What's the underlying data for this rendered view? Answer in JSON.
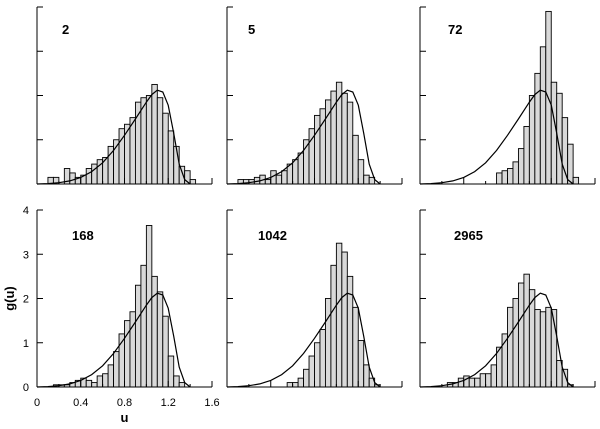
{
  "chart_data": {
    "type": "bar",
    "subtype": "histogram-with-fitted-curve",
    "xlabel": "u",
    "ylabel": "g(u)",
    "xlim": [
      0,
      1.6
    ],
    "ylim": [
      0,
      4
    ],
    "xticks": [
      "0",
      "0.4",
      "0.8",
      "1.2",
      "1.6"
    ],
    "yticks": [
      "0",
      "1",
      "2",
      "3",
      "4"
    ],
    "bin_width": 0.05,
    "bin_start": 0.1,
    "colors": {
      "bar_fill": "#d9d9d9",
      "bar_stroke": "#000000",
      "curve": "#000000",
      "axis": "#000000"
    },
    "curve": {
      "x": [
        0,
        0.1,
        0.2,
        0.3,
        0.4,
        0.5,
        0.6,
        0.7,
        0.8,
        0.9,
        1.0,
        1.05,
        1.1,
        1.15,
        1.2,
        1.25,
        1.3,
        1.35,
        1.4
      ],
      "y": [
        0,
        0.01,
        0.03,
        0.07,
        0.15,
        0.28,
        0.48,
        0.76,
        1.1,
        1.47,
        1.85,
        2.02,
        2.12,
        2.08,
        1.78,
        1.15,
        0.45,
        0.1,
        0
      ]
    },
    "panels": [
      {
        "label": "2",
        "values": [
          0.15,
          0.15,
          0,
          0.35,
          0.25,
          0.15,
          0.2,
          0.35,
          0.45,
          0.55,
          0.6,
          0.85,
          1.0,
          1.25,
          1.35,
          1.5,
          1.85,
          1.95,
          2.0,
          2.25,
          1.95,
          1.6,
          1.2,
          0.85,
          0.4,
          0.3,
          0.1
        ]
      },
      {
        "label": "5",
        "values": [
          0.1,
          0.1,
          0.1,
          0.15,
          0.2,
          0.1,
          0.3,
          0.2,
          0.3,
          0.45,
          0.55,
          0.7,
          1.0,
          1.25,
          1.55,
          1.7,
          1.9,
          2.1,
          2.3,
          2.05,
          1.85,
          1.1,
          0.55,
          0.2,
          0.15
        ]
      },
      {
        "label": "72",
        "values": [
          0,
          0,
          0,
          0,
          0,
          0,
          0,
          0,
          0,
          0,
          0,
          0,
          0.25,
          0.3,
          0.35,
          0.5,
          0.8,
          1.3,
          2.0,
          2.5,
          3.1,
          3.9,
          2.3,
          2.05,
          1.5,
          0.9,
          0.15
        ]
      },
      {
        "label": "168",
        "values": [
          0,
          0.05,
          0.05,
          0.05,
          0.1,
          0.15,
          0.2,
          0.15,
          0.1,
          0.25,
          0.3,
          0.5,
          0.8,
          1.2,
          1.5,
          1.7,
          2.3,
          2.75,
          3.65,
          2.5,
          2.15,
          1.6,
          0.7,
          0.25,
          0.1
        ]
      },
      {
        "label": "1042",
        "values": [
          0,
          0,
          0,
          0,
          0,
          0,
          0,
          0,
          0,
          0.1,
          0.1,
          0.2,
          0.4,
          0.7,
          1.0,
          1.3,
          2.0,
          2.75,
          3.25,
          3.05,
          2.5,
          1.8,
          1.05,
          0.5,
          0.2,
          0.05
        ]
      },
      {
        "label": "2965",
        "values": [
          0,
          0,
          0,
          0.1,
          0.1,
          0.2,
          0.25,
          0.2,
          0.2,
          0.3,
          0.3,
          0.5,
          0.9,
          1.2,
          1.8,
          2.0,
          2.35,
          2.55,
          2.2,
          1.75,
          1.7,
          1.8,
          1.75,
          0.6,
          0.4,
          0.05
        ]
      }
    ]
  }
}
